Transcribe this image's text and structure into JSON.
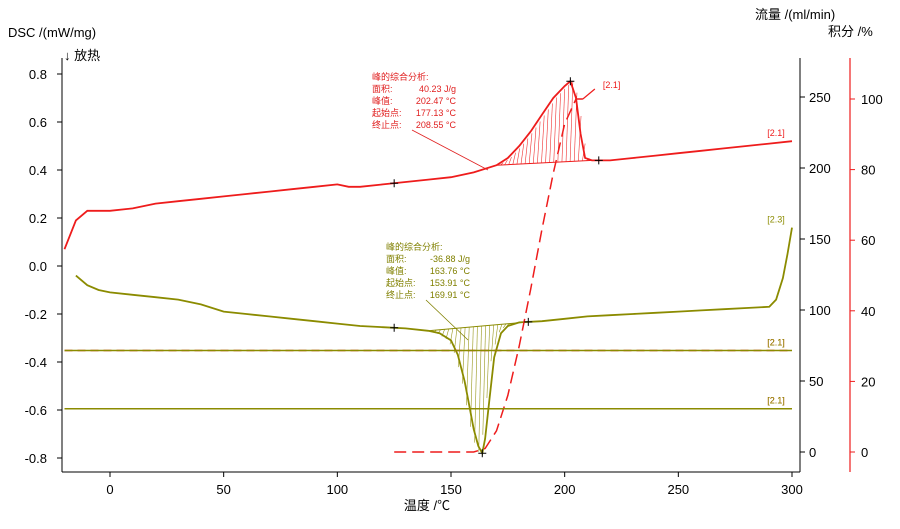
{
  "chart_data": {
    "type": "line",
    "xlabel": "温度 /℃",
    "ylabel_left": "DSC /(mW/mg)",
    "left_direction_label": "↓ 放热",
    "ylabel_right_flow": "流量 /(ml/min)",
    "ylabel_right_integral": "积分 /%",
    "x_ticks": [
      0,
      50,
      100,
      150,
      200,
      250,
      300
    ],
    "y_left_ticks": [
      "0.8",
      "0.6",
      "0.4",
      "0.2",
      "0.0",
      "-0.2",
      "-0.4",
      "-0.6",
      "-0.8"
    ],
    "y_flow_ticks": [
      0,
      50,
      100,
      150,
      200,
      250
    ],
    "y_integral_ticks": [
      0,
      20,
      40,
      60,
      80,
      100
    ],
    "xlim": [
      -20,
      300
    ],
    "ylim_left": [
      -0.8,
      0.8
    ],
    "ylim_flow": [
      0,
      250
    ],
    "ylim_integral": [
      0,
      100
    ],
    "colors": {
      "red": "#ee1c1c",
      "olive": "#8b8b00",
      "red_annotation": "#e02020",
      "olive_annotation": "#808000"
    },
    "series": [
      {
        "curve_label": "[2.1]",
        "axis": "dsc",
        "style": "solid",
        "color": "#ee1c1c",
        "x": [
          -20,
          -15,
          -10,
          -5,
          0,
          10,
          20,
          30,
          40,
          50,
          60,
          70,
          80,
          90,
          100,
          105,
          110,
          120,
          130,
          140,
          150,
          160,
          170,
          175,
          180,
          185,
          190,
          195,
          200,
          202.5,
          205,
          207,
          209,
          212,
          215,
          220,
          230,
          240,
          250,
          260,
          270,
          280,
          290,
          300
        ],
        "y": [
          0.07,
          0.19,
          0.23,
          0.23,
          0.23,
          0.24,
          0.26,
          0.27,
          0.28,
          0.29,
          0.3,
          0.31,
          0.32,
          0.33,
          0.34,
          0.33,
          0.33,
          0.34,
          0.35,
          0.36,
          0.37,
          0.39,
          0.42,
          0.45,
          0.5,
          0.56,
          0.63,
          0.7,
          0.75,
          0.77,
          0.7,
          0.55,
          0.45,
          0.44,
          0.44,
          0.44,
          0.45,
          0.46,
          0.47,
          0.48,
          0.49,
          0.5,
          0.51,
          0.52
        ]
      },
      {
        "curve_label": "[2.3]",
        "axis": "dsc",
        "style": "solid",
        "color": "#8b8b00",
        "x": [
          -15,
          -10,
          -5,
          0,
          10,
          20,
          30,
          40,
          50,
          60,
          70,
          80,
          90,
          100,
          110,
          120,
          130,
          140,
          145,
          150,
          153,
          156,
          158,
          160,
          162,
          163.76,
          165,
          167,
          169,
          172,
          175,
          180,
          190,
          200,
          210,
          220,
          230,
          240,
          250,
          260,
          270,
          280,
          290,
          293,
          296,
          298,
          300
        ],
        "y": [
          -0.04,
          -0.08,
          -0.1,
          -0.11,
          -0.12,
          -0.13,
          -0.14,
          -0.16,
          -0.19,
          -0.2,
          -0.21,
          -0.22,
          -0.23,
          -0.24,
          -0.25,
          -0.255,
          -0.26,
          -0.27,
          -0.28,
          -0.31,
          -0.37,
          -0.48,
          -0.58,
          -0.68,
          -0.75,
          -0.78,
          -0.72,
          -0.55,
          -0.38,
          -0.28,
          -0.25,
          -0.235,
          -0.23,
          -0.22,
          -0.21,
          -0.205,
          -0.2,
          -0.195,
          -0.19,
          -0.185,
          -0.18,
          -0.175,
          -0.17,
          -0.14,
          -0.05,
          0.05,
          0.16
        ]
      },
      {
        "curve_label": "[2.1]",
        "axis": "integral",
        "style": "dashed",
        "color": "#ee1c1c",
        "x": [
          125,
          150,
          160,
          165,
          170,
          175,
          180,
          185,
          190,
          195,
          200,
          205,
          208
        ],
        "y": [
          0,
          0,
          0,
          1,
          6,
          16,
          30,
          46,
          63,
          79,
          93,
          100,
          100
        ]
      },
      {
        "curve_label": "[2.1]",
        "axis": "flow",
        "style": "dashed",
        "color": "#ee1c1c",
        "x": [
          -20,
          300
        ],
        "y": [
          71.5,
          71.5
        ]
      },
      {
        "curve_label": "[2.1]",
        "axis": "flow",
        "style": "dashed",
        "color": "#ee1c1c",
        "x": [
          -20,
          300
        ],
        "y": [
          30.5,
          30.5
        ]
      },
      {
        "curve_label": "[2.1]",
        "axis": "flow",
        "style": "solid",
        "color": "#8b8b00",
        "x": [
          -20,
          300
        ],
        "y": [
          71.5,
          71.5
        ]
      },
      {
        "curve_label": "[2.1]",
        "axis": "flow",
        "style": "solid",
        "color": "#8b8b00",
        "x": [
          -20,
          300
        ],
        "y": [
          30.5,
          30.5
        ]
      }
    ],
    "peaks": [
      {
        "title": "峰的综合分析:",
        "rows": [
          {
            "label": "面积:",
            "value": "40.23 J/g"
          },
          {
            "label": "峰值:",
            "value": "202.47 °C"
          },
          {
            "label": "起始点:",
            "value": "177.13 °C"
          },
          {
            "label": "终止点:",
            "value": "208.55 °C"
          }
        ],
        "markers_x": [
          125,
          202.5,
          215
        ],
        "range": [
          170,
          212
        ]
      },
      {
        "title": "峰的综合分析:",
        "rows": [
          {
            "label": "面积:",
            "value": "-36.88 J/g"
          },
          {
            "label": "峰值:",
            "value": "163.76 °C"
          },
          {
            "label": "起始点:",
            "value": "153.91 °C"
          },
          {
            "label": "终止点:",
            "value": "169.91 °C"
          }
        ],
        "markers_x": [
          125,
          163.76,
          184
        ],
        "range": [
          140,
          184
        ]
      }
    ]
  }
}
